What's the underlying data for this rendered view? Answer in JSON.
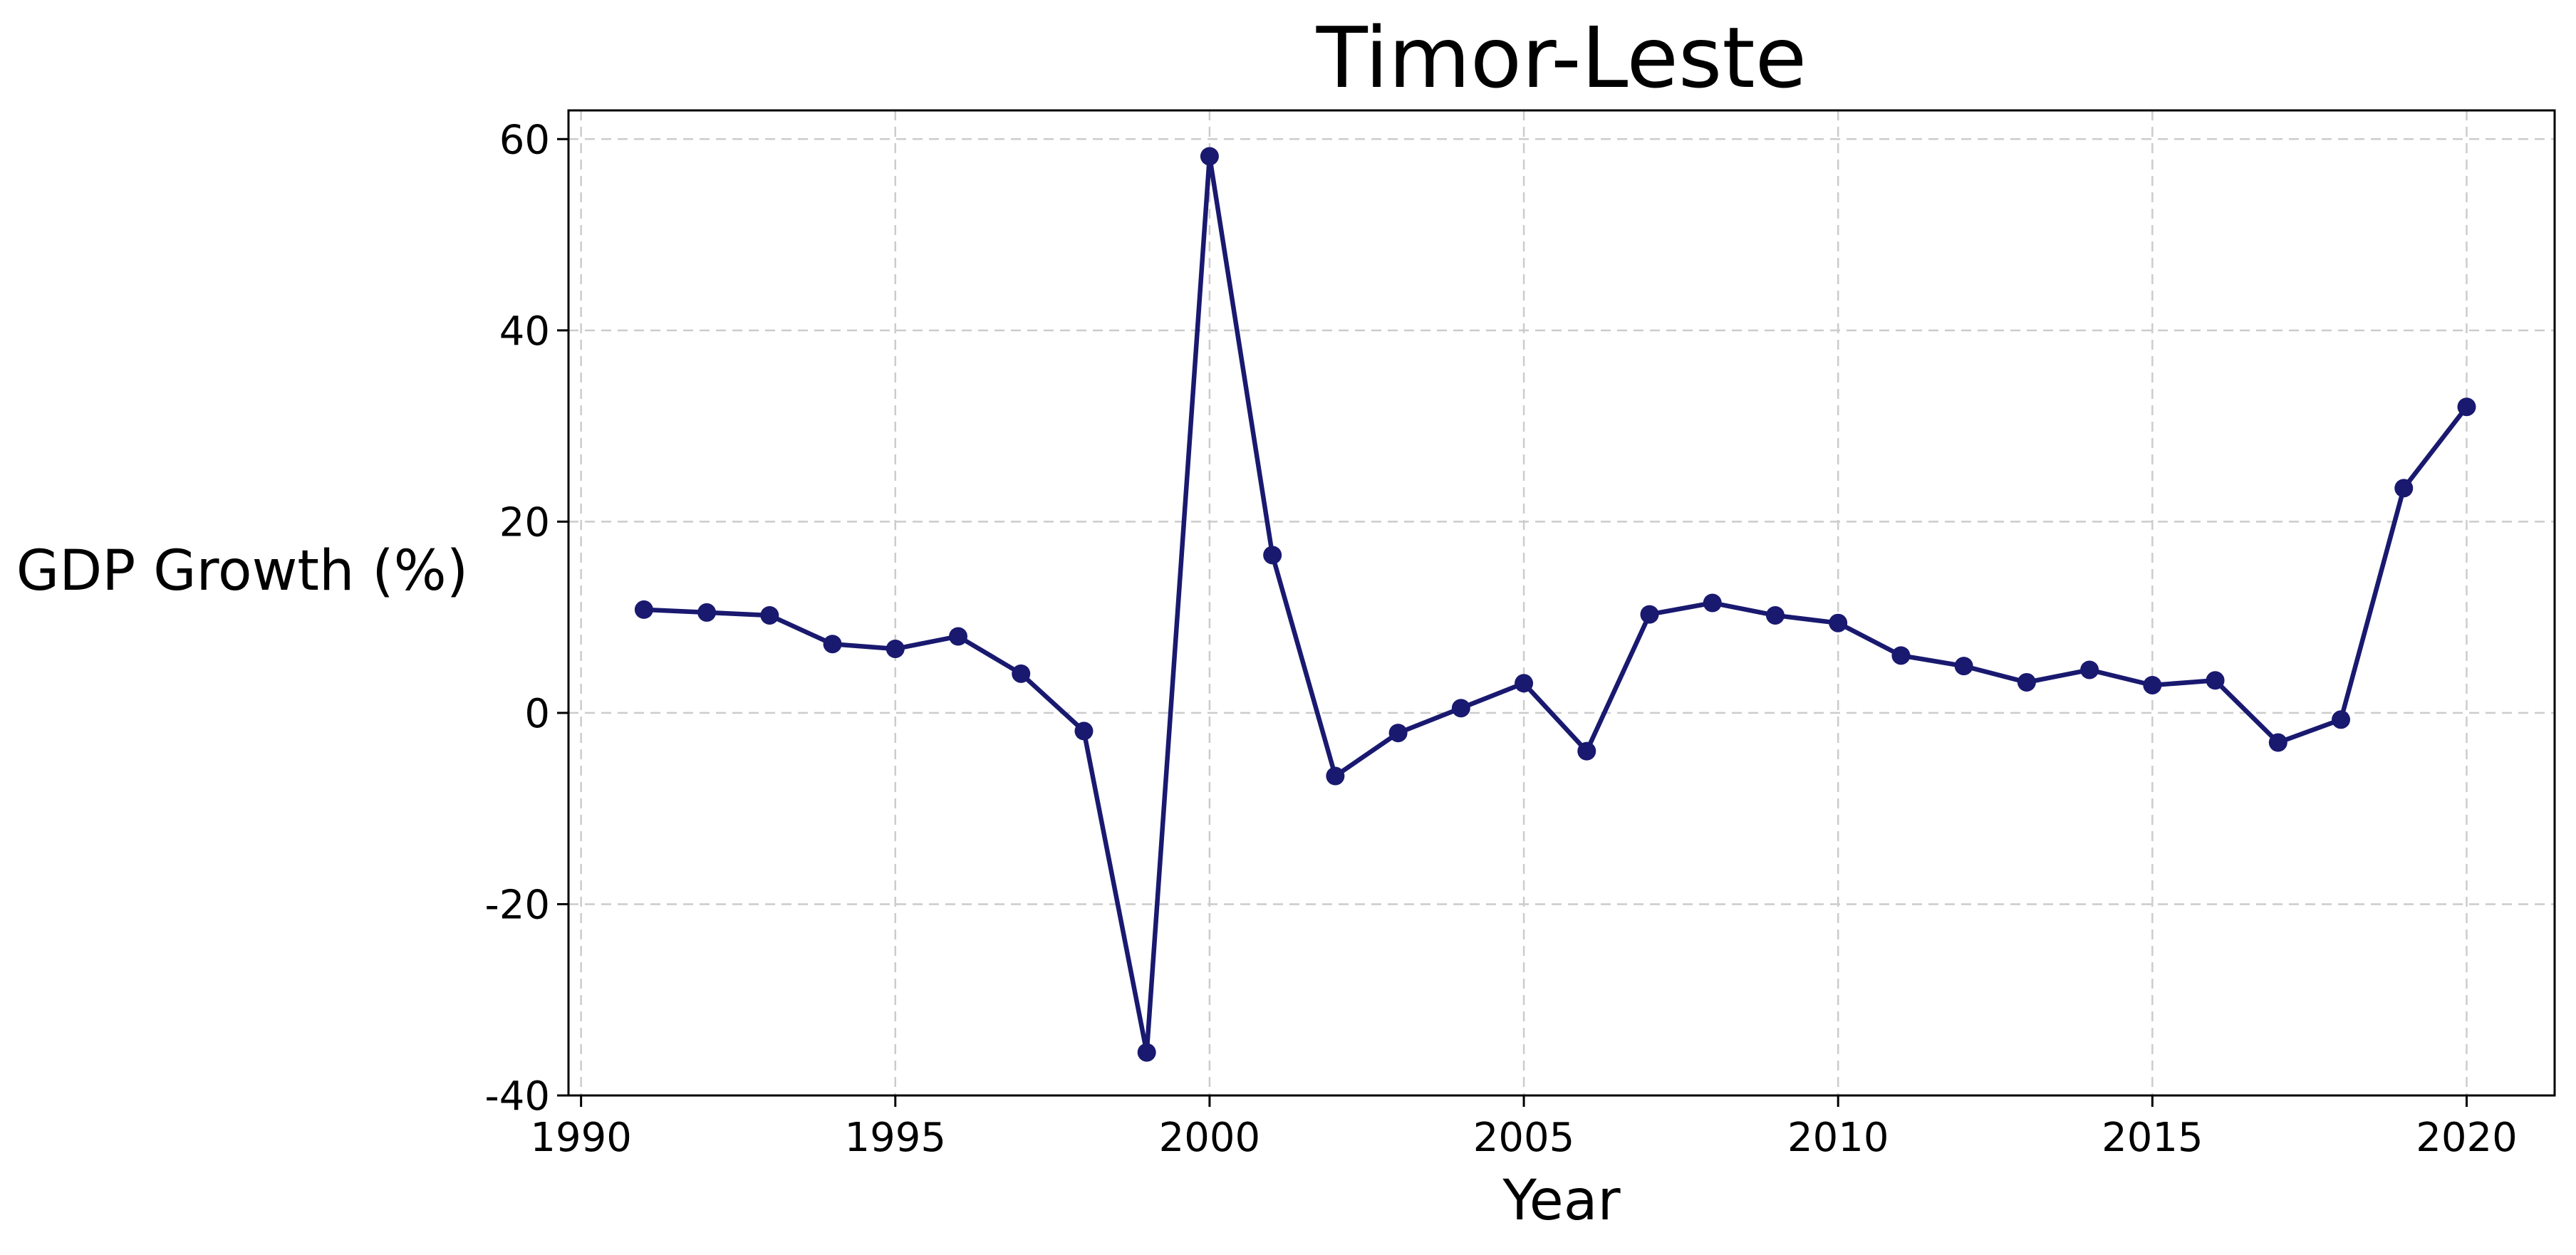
{
  "chart_data": {
    "type": "line",
    "title": "Timor-Leste",
    "xlabel": "Year",
    "ylabel": "GDP Growth (%)",
    "xlim": [
      1989.8,
      2021.4
    ],
    "ylim": [
      -40,
      63
    ],
    "xticks": [
      1990,
      1995,
      2000,
      2005,
      2010,
      2015,
      2020
    ],
    "yticks": [
      -40,
      -20,
      0,
      20,
      40,
      60
    ],
    "grid": true,
    "series": [
      {
        "color": "#191970",
        "marker": "circle",
        "x": [
          1991,
          1992,
          1993,
          1994,
          1995,
          1996,
          1997,
          1998,
          1999,
          2000,
          2001,
          2002,
          2003,
          2004,
          2005,
          2006,
          2007,
          2008,
          2009,
          2010,
          2011,
          2012,
          2013,
          2014,
          2015,
          2016,
          2017,
          2018,
          2019,
          2020
        ],
        "y": [
          10.8,
          10.5,
          10.2,
          7.2,
          6.7,
          8.0,
          4.1,
          -1.9,
          -35.5,
          58.2,
          16.5,
          -6.6,
          -2.1,
          0.5,
          3.1,
          -4.0,
          10.3,
          11.5,
          10.2,
          9.4,
          6.0,
          4.9,
          3.2,
          4.5,
          2.9,
          3.4,
          -3.1,
          -0.7,
          23.5,
          32.0
        ]
      }
    ]
  }
}
